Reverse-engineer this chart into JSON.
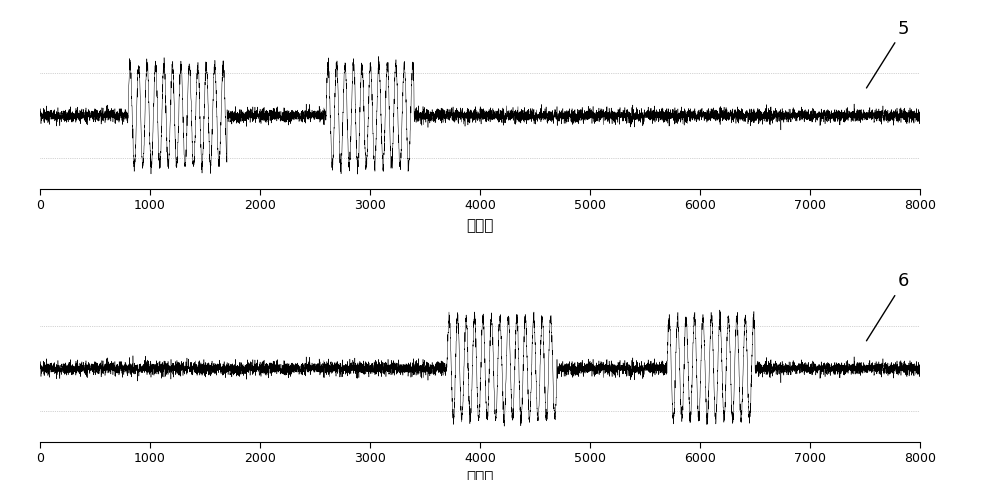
{
  "n_samples": 8000,
  "noise_amplitude": 0.06,
  "burst_amplitude": 0.9,
  "burst_freq_plot1": 0.013,
  "burst_freq_plot2": 0.013,
  "plot1_burst1_start": 800,
  "plot1_burst1_end": 1700,
  "plot1_burst2_start": 2600,
  "plot1_burst2_end": 3400,
  "plot2_burst1_start": 3700,
  "plot2_burst1_end": 4700,
  "plot2_burst2_start": 5700,
  "plot2_burst2_end": 6500,
  "xlabel": "采样点",
  "label1": "5",
  "label2": "6",
  "xlim": [
    0,
    8000
  ],
  "xticks": [
    0,
    1000,
    2000,
    3000,
    4000,
    5000,
    6000,
    7000,
    8000
  ],
  "line_color": "#000000",
  "background_color": "#ffffff",
  "dotted_line_color": "#aaaaaa",
  "annotation_line_color": "#000000",
  "xlabel_fontsize": 11,
  "tick_fontsize": 9,
  "label_fontsize": 13,
  "ylim": [
    -1.3,
    1.8
  ],
  "dotted_y_top": 0.75,
  "dotted_y_bot": -0.75
}
